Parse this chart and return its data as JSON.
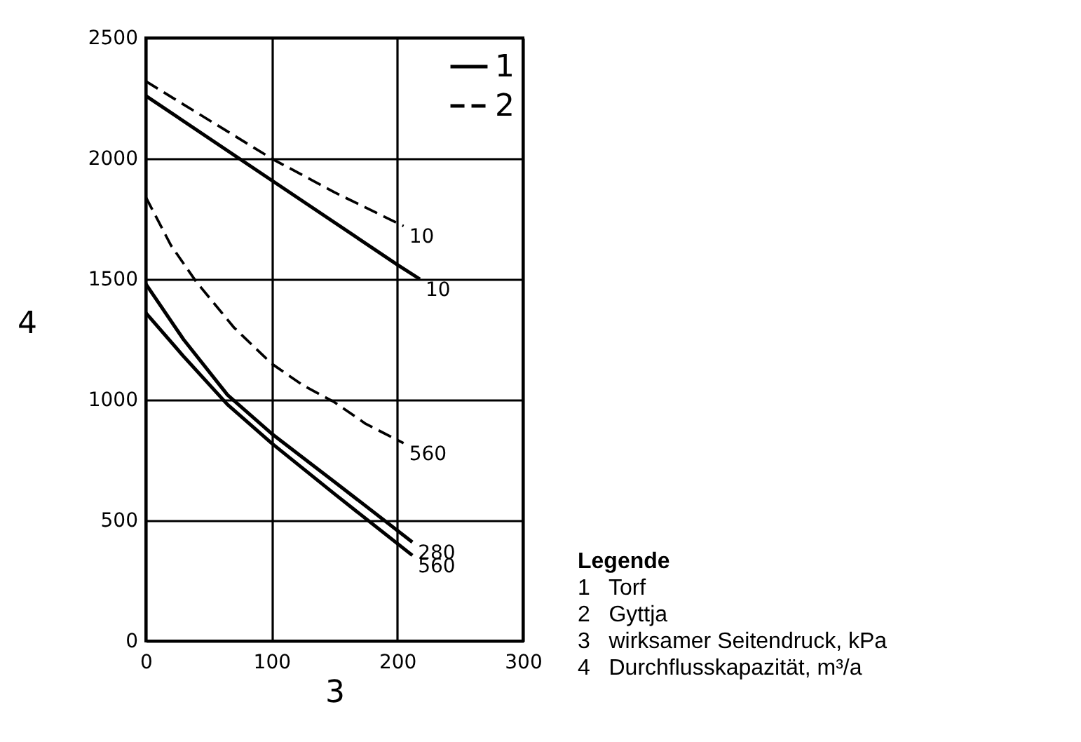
{
  "chart_data": {
    "type": "line",
    "xlabel": "3",
    "ylabel": "4",
    "xlim": [
      0,
      300
    ],
    "ylim": [
      0,
      2500
    ],
    "xticks": [
      0,
      100,
      200,
      300
    ],
    "yticks": [
      0,
      500,
      1000,
      1500,
      2000,
      2500
    ],
    "grid": true,
    "legend": "top right",
    "marker": "none",
    "series": [
      {
        "name": "1",
        "color": "#000000",
        "line_style": "solid",
        "x": [
          0,
          100,
          200,
          218
        ],
        "values": [
          2260,
          1910,
          1560,
          1500
        ]
      },
      {
        "name": "2",
        "color": "#000000",
        "line_style": "dashed",
        "x": [
          0,
          50,
          100,
          150,
          205
        ],
        "values": [
          2320,
          2160,
          2000,
          1860,
          1720
        ]
      },
      {
        "color": "#000000",
        "line_style": "dashed",
        "x": [
          0,
          20,
          40,
          70,
          100,
          125,
          150,
          175,
          205
        ],
        "values": [
          1840,
          1640,
          1490,
          1300,
          1150,
          1060,
          990,
          900,
          820
        ]
      },
      {
        "color": "#000000",
        "line_style": "solid",
        "x": [
          0,
          30,
          65,
          100,
          150,
          212
        ],
        "values": [
          1480,
          1250,
          1020,
          860,
          660,
          410
        ]
      },
      {
        "color": "#000000",
        "line_style": "solid",
        "x": [
          0,
          30,
          65,
          100,
          150,
          212
        ],
        "values": [
          1360,
          1180,
          980,
          820,
          610,
          355
        ]
      }
    ],
    "annotations": [
      {
        "text": "10",
        "x": 205,
        "y": 1720
      },
      {
        "text": "10",
        "x": 218,
        "y": 1500
      },
      {
        "text": "560",
        "x": 205,
        "y": 820
      },
      {
        "text": "280",
        "x": 212,
        "y": 410
      },
      {
        "text": "560",
        "x": 212,
        "y": 355
      },
      "Legende",
      "1   Torf",
      "2   Gyttja",
      "3   wirksamer Seitendruck, kPa",
      "4   Durchflusskapazität, m³/a"
    ]
  }
}
